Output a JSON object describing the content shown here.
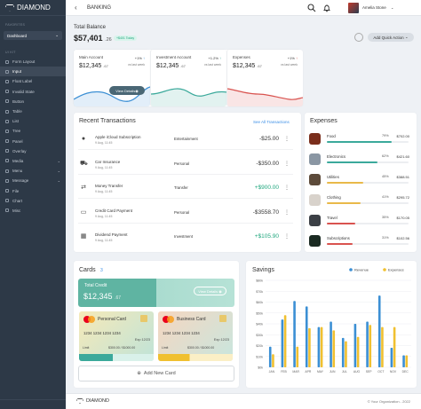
{
  "app": {
    "name": "DIAMOND"
  },
  "sidebar": {
    "section1": "FAVORITES",
    "dashboard": "Dashboard",
    "section2": "UI KIT",
    "items": [
      {
        "label": "Form Layout"
      },
      {
        "label": "Input"
      },
      {
        "label": "Float Label"
      },
      {
        "label": "Invalid State"
      },
      {
        "label": "Button"
      },
      {
        "label": "Table"
      },
      {
        "label": "List"
      },
      {
        "label": "Tree"
      },
      {
        "label": "Panel"
      },
      {
        "label": "Overlay"
      },
      {
        "label": "Media"
      },
      {
        "label": "Menu"
      },
      {
        "label": "Message"
      },
      {
        "label": "File"
      },
      {
        "label": "Chart"
      },
      {
        "label": "Misc"
      }
    ]
  },
  "topbar": {
    "title": "BANKING",
    "user": "Amelia Stone"
  },
  "balance": {
    "label": "Total Balance",
    "amount": "$57,401",
    "cents": ".26",
    "badge": "+$401 Today",
    "action": "Add Quick Action"
  },
  "accounts": [
    {
      "title": "Main Account",
      "amount": "$12,345",
      "cents": ".67",
      "pct": "+1%",
      "sub": "vs last week",
      "color": "#3b8fd4"
    },
    {
      "title": "Investment Account",
      "amount": "$12,345",
      "cents": ".67",
      "pct": "+1.2%",
      "sub": "vs last week",
      "color": "#3ba99b"
    },
    {
      "title": "Expenses",
      "amount": "$12,345",
      "cents": ".67",
      "pct": "+1%",
      "sub": "vs last week",
      "color": "#d9534f"
    }
  ],
  "viewdetails": "View Details",
  "transactions": {
    "title": "Recent Transactions",
    "link": "See All Transactions",
    "rows": [
      {
        "icon": "",
        "name": "Apple iCloud Subscription",
        "date": "9 Aug, 11:45",
        "cat": "Entertainment",
        "amt": "-$25.00",
        "color": "#333"
      },
      {
        "icon": "⛟",
        "name": "Car Insurance",
        "date": "9 Aug, 11:45",
        "cat": "Personal",
        "amt": "-$350.00",
        "color": "#333"
      },
      {
        "icon": "⇄",
        "name": "Money Transfer",
        "date": "9 Aug, 11:45",
        "cat": "Transfer",
        "amt": "+$900.00",
        "color": "#20a77e"
      },
      {
        "icon": "▭",
        "name": "Credit Card Payment",
        "date": "9 Aug, 11:45",
        "cat": "Personal",
        "amt": "-$3558.70",
        "color": "#333"
      },
      {
        "icon": "▦",
        "name": "Dividend Payment",
        "date": "9 Aug, 11:45",
        "cat": "Investment",
        "amt": "+$105.90",
        "color": "#20a77e"
      }
    ]
  },
  "expenses": {
    "title": "Expenses",
    "rows": [
      {
        "name": "Food",
        "pct": "79%",
        "amt": "$702.00",
        "fill": 0.79,
        "color": "#3ba99b",
        "bg": "#7a2e1c"
      },
      {
        "name": "Electronics",
        "pct": "62%",
        "amt": "$421.60",
        "fill": 0.62,
        "color": "#3ba99b",
        "bg": "#8a96a3"
      },
      {
        "name": "Utilities",
        "pct": "45%",
        "amt": "$388.51",
        "fill": 0.45,
        "color": "#e9b949",
        "bg": "#5c4a3a"
      },
      {
        "name": "Clothing",
        "pct": "41%",
        "amt": "$295.72",
        "fill": 0.41,
        "color": "#e9b949",
        "bg": "#d8d2cb"
      },
      {
        "name": "Travel",
        "pct": "35%",
        "amt": "$170.05",
        "fill": 0.35,
        "color": "#d9534f",
        "bg": "#3b3f45"
      },
      {
        "name": "Subscriptions",
        "pct": "31%",
        "amt": "$102.56",
        "fill": 0.31,
        "color": "#d9534f",
        "bg": "#1a2a22"
      }
    ]
  },
  "cards": {
    "title": "Cards",
    "count": "3",
    "total_label": "Total Credit",
    "total": "$12,345",
    "total_cents": ".67",
    "view": "View Details",
    "personal": {
      "name": "Personal Card",
      "num": "1234  1234  1234  1234",
      "exp": "Exp 12/23",
      "limit": "Limit",
      "limval": "$300.00 / $1000.00"
    },
    "business": {
      "name": "Business Card",
      "num": "1234  1234  1234  1234",
      "exp": "Exp 12/23",
      "limit": "Limit",
      "limval": "$300.00 / $1000.00"
    },
    "add": "Add New Card"
  },
  "chart_data": {
    "type": "bar",
    "title": "Savings",
    "categories": [
      "JAN",
      "FEB",
      "MAR",
      "APR",
      "MAY",
      "JUN",
      "JUL",
      "AUG",
      "SEP",
      "OCT",
      "NOV",
      "DEC"
    ],
    "series": [
      {
        "name": "Revenue",
        "color": "#3b8fd4",
        "values": [
          19,
          44,
          61,
          56,
          37,
          42,
          27,
          40,
          42,
          66,
          18,
          11
        ]
      },
      {
        "name": "Expenses",
        "color": "#f0c030",
        "values": [
          12,
          48,
          19,
          36,
          37,
          34,
          24,
          28,
          39,
          37,
          37,
          11
        ]
      }
    ],
    "ylim": [
      0,
      80
    ],
    "yticks": [
      "$0k",
      "$10k",
      "$20k",
      "$30k",
      "$40k",
      "$50k",
      "$60k",
      "$70k",
      "$80k"
    ],
    "legend": "top-right",
    "grid": true
  },
  "footer": {
    "logo": "DIAMOND",
    "copy": "© Your Organization - 2022"
  }
}
